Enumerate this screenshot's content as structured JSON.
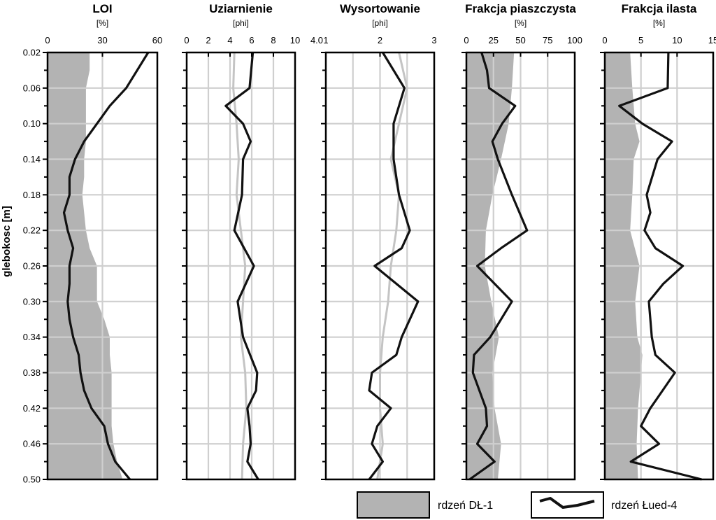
{
  "chart_data": {
    "type": "line",
    "colors": {
      "area": "#b3b3b3",
      "line": "#111111",
      "grid": "#cfcfcf",
      "dl1_line": "#c4c4c4"
    },
    "ylabel": "glebokosc [m]",
    "y_ticks": [
      "0.02",
      "0.06",
      "0.10",
      "0.14",
      "0.18",
      "0.22",
      "0.26",
      "0.30",
      "0.34",
      "0.38",
      "0.42",
      "0.46",
      "0.50"
    ],
    "ylim": [
      0.02,
      0.5
    ],
    "y_inverted": true,
    "legend": [
      {
        "label": "rdzeń DŁ-1",
        "style": "area"
      },
      {
        "label": "rdzeń Łued-4",
        "style": "line"
      }
    ],
    "panels": [
      {
        "title": "LOI",
        "unit": "[%]",
        "xlim": [
          0,
          60
        ],
        "xticks": [
          {
            "label": "0",
            "v": 0
          },
          {
            "label": "30",
            "v": 30
          },
          {
            "label": "60",
            "v": 60
          }
        ],
        "gridlines": [
          30
        ],
        "dl1_style": "area",
        "series": [
          {
            "name": "rdzeń DŁ-1",
            "depth": [
              0.02,
              0.04,
              0.06,
              0.08,
              0.1,
              0.12,
              0.14,
              0.16,
              0.18,
              0.2,
              0.22,
              0.24,
              0.26,
              0.28,
              0.3,
              0.32,
              0.34,
              0.36,
              0.38,
              0.4,
              0.42,
              0.44,
              0.46,
              0.48,
              0.5
            ],
            "values": [
              23,
              23,
              21,
              21,
              21,
              21,
              20,
              20,
              19,
              20,
              21,
              23,
              27,
              27,
              27,
              31,
              34,
              34,
              35,
              35,
              35,
              35,
              36,
              38,
              41
            ]
          },
          {
            "name": "rdzeń Łued-4",
            "depth": [
              0.02,
              0.06,
              0.08,
              0.1,
              0.12,
              0.14,
              0.16,
              0.18,
              0.2,
              0.22,
              0.24,
              0.26,
              0.28,
              0.3,
              0.32,
              0.34,
              0.36,
              0.38,
              0.4,
              0.42,
              0.44,
              0.46,
              0.48,
              0.5
            ],
            "values": [
              55,
              43,
              34,
              27,
              20,
              15,
              12,
              12,
              9,
              11,
              14,
              12,
              12,
              11,
              12,
              14,
              17,
              18,
              20,
              24,
              31,
              33,
              37,
              45
            ]
          }
        ]
      },
      {
        "title": "Uziarnienie",
        "unit": "[phi]",
        "xlim": [
          0,
          10
        ],
        "xticks": [
          {
            "label": "0",
            "v": 0
          },
          {
            "label": "2",
            "v": 2
          },
          {
            "label": "4",
            "v": 4
          },
          {
            "label": "6",
            "v": 6
          },
          {
            "label": "8",
            "v": 8
          },
          {
            "label": "10",
            "v": 10
          }
        ],
        "gridlines": [
          2,
          4,
          6,
          8
        ],
        "dl1_style": "line",
        "series": [
          {
            "name": "rdzeń DŁ-1",
            "depth": [
              0.02,
              0.06,
              0.1,
              0.14,
              0.18,
              0.22,
              0.26,
              0.3,
              0.34,
              0.38,
              0.42,
              0.46,
              0.5
            ],
            "values": [
              4.4,
              4.3,
              4.6,
              4.8,
              4.6,
              5.0,
              5.4,
              5.2,
              5.0,
              5.4,
              5.5,
              5.2,
              5.1
            ]
          },
          {
            "name": "rdzeń Łued-4",
            "depth": [
              0.02,
              0.06,
              0.08,
              0.1,
              0.12,
              0.14,
              0.18,
              0.22,
              0.26,
              0.3,
              0.34,
              0.38,
              0.4,
              0.42,
              0.44,
              0.46,
              0.48,
              0.5
            ],
            "values": [
              6.1,
              5.8,
              3.6,
              5.2,
              5.9,
              5.2,
              5.1,
              4.4,
              6.2,
              4.7,
              5.2,
              6.5,
              6.4,
              5.6,
              5.8,
              5.9,
              5.6,
              6.6
            ]
          }
        ]
      },
      {
        "title": "Wysortowanie",
        "unit": "[phi]",
        "xlim": [
          1,
          3
        ],
        "xticks": [
          {
            "label": "1",
            "v": 1
          },
          {
            "label": "2",
            "v": 2
          },
          {
            "label": "3",
            "v": 3
          }
        ],
        "extra_tick": "4.0",
        "gridlines": [
          1.5,
          2,
          2.5
        ],
        "dl1_style": "line",
        "series": [
          {
            "name": "rdzeń DŁ-1",
            "depth": [
              0.02,
              0.06,
              0.1,
              0.14,
              0.18,
              0.22,
              0.26,
              0.3,
              0.34,
              0.38,
              0.42,
              0.46,
              0.5
            ],
            "values": [
              2.35,
              2.5,
              2.35,
              2.2,
              2.35,
              2.3,
              2.2,
              2.15,
              2.05,
              2.0,
              2.0,
              2.05,
              1.95
            ]
          },
          {
            "name": "rdzeń Łued-4",
            "depth": [
              0.02,
              0.06,
              0.1,
              0.14,
              0.18,
              0.22,
              0.24,
              0.26,
              0.3,
              0.34,
              0.36,
              0.38,
              0.4,
              0.42,
              0.44,
              0.46,
              0.48,
              0.5
            ],
            "values": [
              2.05,
              2.45,
              2.25,
              2.25,
              2.35,
              2.55,
              2.4,
              1.9,
              2.7,
              2.4,
              2.3,
              1.85,
              1.8,
              2.2,
              1.95,
              1.85,
              2.05,
              1.8
            ]
          }
        ]
      },
      {
        "title": "Frakcja piaszczysta",
        "unit": "[%]",
        "xlim": [
          0,
          100
        ],
        "xticks": [
          {
            "label": "0",
            "v": 0
          },
          {
            "label": "25",
            "v": 25
          },
          {
            "label": "50",
            "v": 50
          },
          {
            "label": "75",
            "v": 75
          },
          {
            "label": "100",
            "v": 100
          }
        ],
        "gridlines": [
          25,
          50,
          75
        ],
        "dl1_style": "area",
        "series": [
          {
            "name": "rdzeń DŁ-1",
            "depth": [
              0.02,
              0.06,
              0.1,
              0.14,
              0.18,
              0.22,
              0.26,
              0.3,
              0.34,
              0.38,
              0.42,
              0.46,
              0.5
            ],
            "values": [
              44,
              42,
              39,
              32,
              24,
              18,
              17,
              23,
              30,
              24,
              26,
              32,
              29
            ]
          },
          {
            "name": "rdzeń Łued-4",
            "depth": [
              0.02,
              0.04,
              0.06,
              0.08,
              0.1,
              0.12,
              0.14,
              0.18,
              0.22,
              0.24,
              0.26,
              0.3,
              0.34,
              0.36,
              0.38,
              0.4,
              0.42,
              0.44,
              0.46,
              0.48,
              0.5
            ],
            "values": [
              14,
              19,
              21,
              45,
              33,
              24,
              29,
              42,
              56,
              32,
              10,
              42,
              22,
              7,
              6,
              12,
              18,
              19,
              10,
              26,
              3
            ]
          }
        ]
      },
      {
        "title": "Frakcja ilasta",
        "unit": "[%]",
        "xlim": [
          0,
          15
        ],
        "xticks": [
          {
            "label": "0",
            "v": 0
          },
          {
            "label": "5",
            "v": 5
          },
          {
            "label": "10",
            "v": 10
          },
          {
            "label": "15",
            "v": 15
          }
        ],
        "gridlines": [
          5,
          10
        ],
        "dl1_style": "area",
        "series": [
          {
            "name": "rdzeń DŁ-1",
            "depth": [
              0.02,
              0.06,
              0.1,
              0.12,
              0.14,
              0.18,
              0.22,
              0.26,
              0.3,
              0.34,
              0.36,
              0.38,
              0.42,
              0.46,
              0.5
            ],
            "values": [
              3.5,
              3.8,
              4.2,
              4.8,
              4.0,
              3.8,
              3.5,
              4.8,
              4.2,
              4.5,
              5.2,
              5.0,
              4.6,
              4.4,
              4.6
            ]
          },
          {
            "name": "rdzeń Łued-4",
            "depth": [
              0.02,
              0.06,
              0.08,
              0.1,
              0.12,
              0.14,
              0.18,
              0.2,
              0.22,
              0.24,
              0.26,
              0.28,
              0.3,
              0.34,
              0.36,
              0.38,
              0.4,
              0.42,
              0.44,
              0.46,
              0.48,
              0.5
            ],
            "values": [
              8.8,
              8.7,
              2.0,
              5.2,
              9.3,
              7.3,
              5.8,
              6.3,
              5.5,
              7.0,
              10.8,
              8.1,
              6.1,
              6.5,
              7.0,
              9.7,
              8.0,
              6.3,
              5.0,
              7.5,
              3.6,
              13.4
            ]
          }
        ]
      }
    ]
  }
}
